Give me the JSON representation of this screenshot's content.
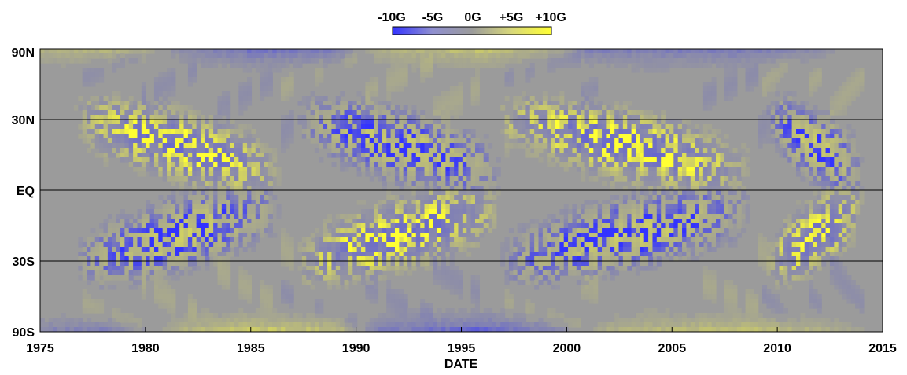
{
  "chart_data": {
    "type": "heatmap",
    "title": "",
    "xlabel": "DATE",
    "ylabel": "",
    "x_ticks": [
      1975,
      1980,
      1985,
      1990,
      1995,
      2000,
      2005,
      2010,
      2015
    ],
    "x_tick_labels": [
      "1975",
      "1980",
      "1985",
      "1990",
      "1995",
      "2000",
      "2005",
      "2010",
      "2015"
    ],
    "xlim": [
      1975,
      2015
    ],
    "y_ticks": [
      90,
      30,
      0,
      -30,
      -90
    ],
    "y_tick_labels": [
      "90N",
      "30N",
      "EQ",
      "30S",
      "90S"
    ],
    "ylim": [
      -90,
      90
    ],
    "y_scale": "sine-latitude",
    "data_end_year": 2014.1,
    "colorbar": {
      "labels": [
        "-10G",
        "-5G",
        "0G",
        "+5G",
        "+10G"
      ],
      "values": [
        -10,
        -5,
        0,
        5,
        10
      ],
      "colors": [
        "#3333ff",
        "#8f8fd0",
        "#9b9b9b",
        "#d8d87a",
        "#ffff33"
      ]
    },
    "background_color": "#9b9b9b",
    "grid_lines_at": [
      30,
      0,
      -30
    ],
    "cycles": [
      {
        "start": 1976.5,
        "end": 1986.5,
        "north_sign": 1,
        "south_sign": -1
      },
      {
        "start": 1987.0,
        "end": 1997.0,
        "north_sign": -1,
        "south_sign": 1
      },
      {
        "start": 1996.5,
        "end": 2009.0,
        "north_sign": 1,
        "south_sign": -1
      },
      {
        "start": 2009.5,
        "end": 2014.1,
        "north_sign": -1,
        "south_sign": 1
      }
    ],
    "polar_fields": {
      "north": [
        {
          "x": 1975,
          "v": 3
        },
        {
          "x": 1978,
          "v": 4
        },
        {
          "x": 1980,
          "v": 2
        },
        {
          "x": 1981.5,
          "v": -2
        },
        {
          "x": 1985,
          "v": -6
        },
        {
          "x": 1989,
          "v": -5
        },
        {
          "x": 1991,
          "v": 3
        },
        {
          "x": 1996,
          "v": 6
        },
        {
          "x": 2000,
          "v": 1
        },
        {
          "x": 2001,
          "v": -4
        },
        {
          "x": 2008,
          "v": -5
        },
        {
          "x": 2012,
          "v": -2
        },
        {
          "x": 2014.1,
          "v": 1
        }
      ],
      "south": [
        {
          "x": 1975,
          "v": -3
        },
        {
          "x": 1978,
          "v": -4
        },
        {
          "x": 1980,
          "v": -1
        },
        {
          "x": 1981.5,
          "v": 3
        },
        {
          "x": 1985,
          "v": 7
        },
        {
          "x": 1989,
          "v": 5
        },
        {
          "x": 1991,
          "v": -4
        },
        {
          "x": 1996,
          "v": -8
        },
        {
          "x": 2000,
          "v": -2
        },
        {
          "x": 2002,
          "v": 3
        },
        {
          "x": 2008,
          "v": 6
        },
        {
          "x": 2012,
          "v": 3
        },
        {
          "x": 2014.1,
          "v": 1
        }
      ]
    }
  }
}
